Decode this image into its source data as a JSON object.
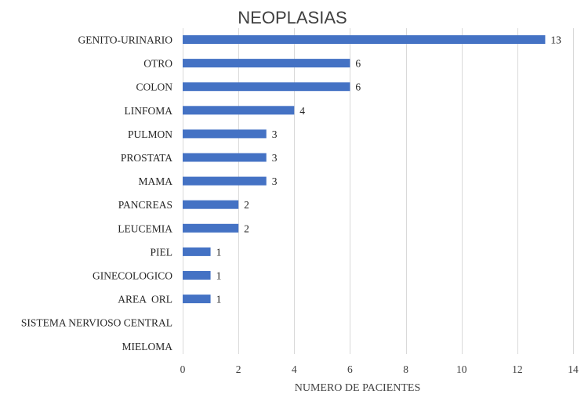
{
  "chart_data": {
    "type": "bar",
    "orientation": "horizontal",
    "title": "NEOPLASIAS",
    "xlabel": "NUMERO DE PACIENTES",
    "ylabel": "",
    "categories": [
      "GENITO-URINARIO",
      "OTRO",
      "COLON",
      "LINFOMA",
      "PULMON",
      "PROSTATA",
      "MAMA",
      "PANCREAS",
      "LEUCEMIA",
      "PIEL",
      "GINECOLOGICO",
      "AREA  ORL",
      "SISTEMA NERVIOSO CENTRAL",
      "MIELOMA"
    ],
    "values": [
      13,
      6,
      6,
      4,
      3,
      3,
      3,
      2,
      2,
      1,
      1,
      1,
      null,
      null
    ],
    "xlim": [
      0,
      14
    ],
    "xticks": [
      0,
      2,
      4,
      6,
      8,
      10,
      12,
      14
    ],
    "grid": "vertical",
    "legend": "none",
    "bar_color": "#4472c4"
  }
}
